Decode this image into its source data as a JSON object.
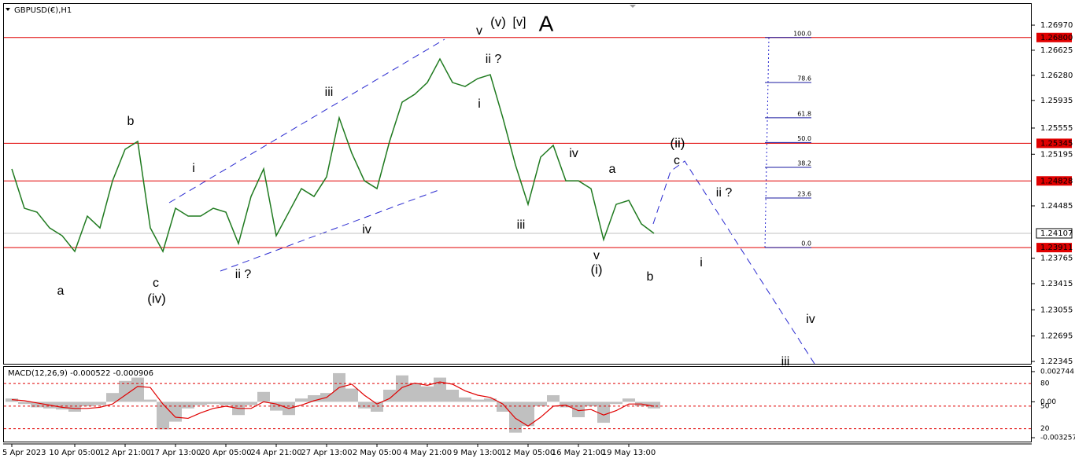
{
  "chart_data": [
    {
      "type": "line",
      "title": "GBPUSD(€),H1",
      "color": "#1f7a1f",
      "categories": [
        "5 Apr 2023",
        null,
        null,
        null,
        null,
        "10 Apr 05:00",
        null,
        null,
        null,
        "12 Apr 21:00",
        null,
        null,
        null,
        "17 Apr 13:00",
        null,
        null,
        null,
        "20 Apr 05:00",
        null,
        null,
        null,
        "24 Apr 21:00",
        null,
        null,
        null,
        "27 Apr 13:00",
        null,
        null,
        null,
        "2 May 05:00",
        null,
        null,
        null,
        "4 May 21:00",
        null,
        null,
        null,
        "9 May 13:00",
        null,
        null,
        null,
        "12 May 05:00",
        null,
        null,
        null,
        "16 May 21:00",
        null,
        null,
        null,
        "19 May 13:00",
        null,
        null
      ],
      "values": [
        1.24993,
        1.24452,
        1.24398,
        1.24182,
        1.24074,
        1.23858,
        1.24344,
        1.24182,
        1.2483,
        1.25263,
        1.25371,
        1.24182,
        1.23858,
        1.24452,
        1.24344,
        1.24344,
        1.24452,
        1.24398,
        1.23966,
        1.24614,
        1.24993,
        1.24074,
        1.24398,
        1.24722,
        1.24614,
        1.24884,
        1.25695,
        1.25209,
        1.2483,
        1.24722,
        1.25371,
        1.25911,
        1.26019,
        1.26181,
        1.26505,
        1.26181,
        1.26127,
        1.26235,
        1.26289,
        1.25695,
        1.25047,
        1.24506,
        1.25155,
        1.25317,
        1.2483,
        1.2483,
        1.24722,
        1.2402,
        1.24506,
        1.2456,
        1.24236,
        1.24107
      ],
      "ylim": [
        1.22313,
        1.27262
      ],
      "yticks": [
        {
          "value": 1.2697,
          "label": "1.26970"
        },
        1.26625,
        {
          "value": 1.2628,
          "label": "1.26280"
        },
        1.25935,
        1.25555,
        1.25195,
        1.24485,
        1.23765,
        1.23415,
        1.23055,
        1.22695,
        1.22345
      ],
      "levels": [
        {
          "value": 1.268,
          "label": "1.26800"
        },
        {
          "value": 1.25345,
          "label": "1.25345"
        },
        {
          "value": 1.24828,
          "label": "1.24828"
        },
        {
          "value": 1.23911,
          "label": "1.23911"
        }
      ],
      "levels_color": "#e00000",
      "current": {
        "value": 1.24107,
        "label": "1.24107"
      },
      "fib": [
        {
          "value": 100,
          "label": "100.0"
        },
        78.6,
        61.8,
        {
          "value": 50,
          "label": "50.0"
        },
        38.2,
        23.6,
        {
          "value": 0,
          "label": "0.0"
        }
      ],
      "fib_color": "#1a1aa0",
      "annotations": [
        {
          "text": "a",
          "color": "#e020e0"
        },
        {
          "text": "b",
          "color": "#e020e0"
        },
        {
          "text": "c",
          "color": "#e020e0"
        },
        {
          "text": "(iv)",
          "color": "#1a1aa0"
        },
        {
          "text": "i",
          "color": "#e020e0"
        },
        {
          "text": "ii ?",
          "color": "#e020e0"
        },
        {
          "text": "iii",
          "color": "#e020e0"
        },
        {
          "text": "iv",
          "color": "#e020e0"
        },
        {
          "text": "v",
          "color": "#e020e0"
        },
        {
          "text": "(v)",
          "color": "#1a1aa0"
        },
        {
          "text": "[v]",
          "color": "#2a9a2a"
        },
        {
          "text": "A",
          "color": "#e02020"
        },
        {
          "text": "ii ?",
          "color": "#e020e0"
        },
        {
          "text": "i",
          "color": "#e020e0"
        },
        {
          "text": "iii",
          "color": "#e020e0"
        },
        {
          "text": "iv",
          "color": "#e020e0"
        },
        {
          "text": "v",
          "color": "#e020e0"
        },
        {
          "text": "(i)",
          "color": "#1a1aa0"
        },
        {
          "text": "a",
          "color": "#e020e0"
        },
        {
          "text": "b",
          "color": "#e020e0"
        },
        {
          "text": "(ii)",
          "color": "#1a1aa0"
        },
        {
          "text": "c",
          "color": "#e020e0"
        },
        {
          "text": "ii ?",
          "color": "#e020e0"
        },
        {
          "text": "i",
          "color": "#e020e0"
        },
        {
          "text": "iv",
          "color": "#e020e0"
        },
        {
          "text": "iii",
          "color": "#e020e0"
        }
      ]
    },
    {
      "type": "macd",
      "title": "MACD(12,26,9) -0.000522 -0.000906",
      "color": "#c0c0c0",
      "values": [
        0.0003,
        -0.0002,
        -0.0005,
        -0.0006,
        -0.0007,
        -0.0009,
        -0.0004,
        -0.0003,
        0.0008,
        0.0019,
        0.0022,
        0.0002,
        -0.0025,
        -0.0018,
        -0.0006,
        -0.0003,
        -0.0002,
        -0.0003,
        -0.0012,
        -0.0003,
        0.0009,
        -0.0008,
        -0.0012,
        0.0003,
        0.0006,
        0.0008,
        0.0026,
        0.0012,
        -0.0006,
        -0.0009,
        0.0011,
        0.0024,
        0.0017,
        0.0014,
        0.0022,
        0.0011,
        0.0004,
        0.0002,
        0.0003,
        -0.0009,
        -0.0028,
        -0.0022,
        -0.0004,
        0.0006,
        -0.0005,
        -0.0014,
        -0.0004,
        -0.0019,
        -0.0002,
        0.0003,
        -0.0004,
        -0.0006
      ],
      "signal": {
        "color": "#e00000",
        "values": [
          0.0002,
          0.0001,
          -0.0001,
          -0.0003,
          -0.0005,
          -0.0006,
          -0.0006,
          -0.0005,
          -0.0002,
          0.0006,
          0.0014,
          0.0013,
          -0.0002,
          -0.0014,
          -0.0015,
          -0.001,
          -0.0006,
          -0.0004,
          -0.0006,
          -0.0006,
          0.0,
          -0.0002,
          -0.0006,
          -0.0003,
          0.0001,
          0.0004,
          0.0013,
          0.0016,
          0.0006,
          -0.0002,
          0.0003,
          0.0013,
          0.0017,
          0.0015,
          0.0018,
          0.0016,
          0.001,
          0.0006,
          0.0004,
          -0.0002,
          -0.0015,
          -0.0022,
          -0.0014,
          -0.0004,
          -0.0003,
          -0.0008,
          -0.0007,
          -0.0012,
          -0.0008,
          -0.0002,
          -0.0002,
          -0.0004
        ]
      },
      "ylim": [
        -0.00361,
        0.003168
      ],
      "yticks": [
        0.002744,
        {
          "value": 0,
          "label": "0.00"
        },
        -0.003257
      ],
      "y2lim": [
        3,
        102
      ],
      "y2ticks": [
        80,
        50,
        20
      ],
      "y2_color": "#e00000"
    }
  ]
}
